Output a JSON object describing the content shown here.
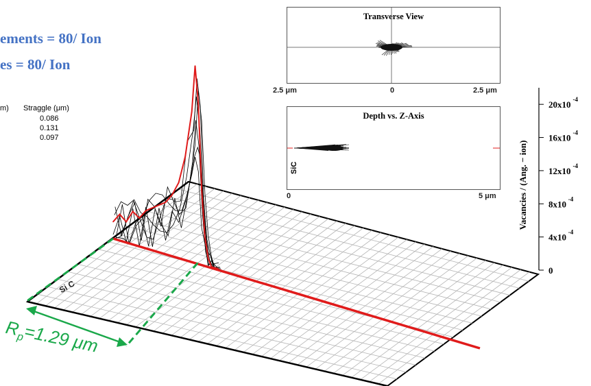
{
  "header": {
    "line1": "ements = 80/ Ion",
    "line2": "es = 80/ Ion"
  },
  "table": {
    "col1_header": "m)",
    "col2_header": "Straggle (μm)",
    "rows": [
      "0.086",
      "0.131",
      "0.097"
    ]
  },
  "transverse": {
    "title": "Transverse View",
    "tick_left": "2.5 μm",
    "tick_mid": "0",
    "tick_right": "2.5 μm"
  },
  "depth": {
    "title": "Depth vs. Z-Axis",
    "material": "SiC",
    "tick_left": "0",
    "tick_right": "5 μm"
  },
  "main": {
    "material_label": "Si C",
    "rp_label": "=1.29 μm",
    "rp_symbol": "R",
    "rp_sub": "p",
    "ylabel": "Vacancies / (Ang. − ion)"
  },
  "chart_data": {
    "type": "area",
    "zlabel": "Vacancies / (Ang. − ion)",
    "z_ticks": [
      "0",
      "4x10",
      "8x10",
      "12x10",
      "16x10",
      "20x10"
    ],
    "z_tick_exponent": "-4",
    "zlim": [
      0,
      0.0022
    ],
    "projected_range_um": 1.29,
    "x_um": [
      0.0,
      0.1,
      0.2,
      0.3,
      0.4,
      0.5,
      0.6,
      0.7,
      0.8,
      0.9,
      1.0,
      1.1,
      1.2,
      1.25,
      1.3,
      1.35,
      1.4,
      1.45,
      1.5,
      1.6
    ],
    "vacancies": [
      0.00018,
      0.00028,
      0.00022,
      0.00035,
      0.0003,
      0.0004,
      0.00045,
      0.0005,
      0.00055,
      0.00065,
      0.0008,
      0.0011,
      0.0016,
      0.0021,
      0.0017,
      0.0008,
      0.0003,
      8e-05,
      0.0,
      0.0
    ],
    "colors": {
      "profile": "#e01b1b",
      "trajectories": "#000000",
      "rp_marker": "#1aa84a",
      "heading": "#4472c4"
    }
  }
}
